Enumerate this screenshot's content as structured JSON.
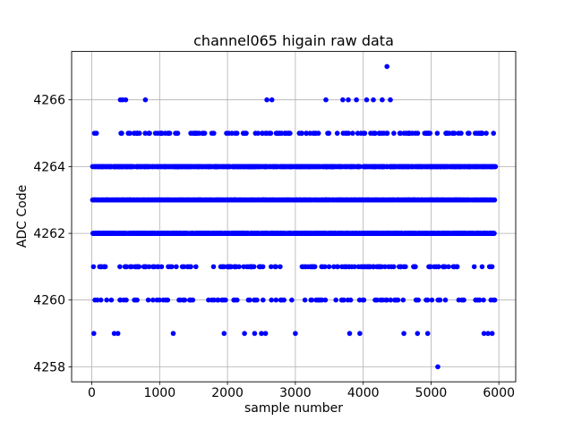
{
  "chart_data": {
    "type": "scatter",
    "title": "channel065 higain raw data",
    "xlabel": "sample number",
    "ylabel": "ADC Code",
    "marker": {
      "color": "#0000ff",
      "radius": 2.8
    },
    "grid": true,
    "legend": "none",
    "x_range": [
      10,
      5950
    ],
    "xlim": [
      -297.5,
      6247.5
    ],
    "ylim": [
      4257.55,
      4267.45
    ],
    "xticks": [
      0,
      1000,
      2000,
      3000,
      4000,
      5000,
      6000
    ],
    "yticks": [
      4258,
      4260,
      4262,
      4264,
      4266
    ],
    "levels": [
      {
        "adc": 4258,
        "points": [
          5100
        ]
      },
      {
        "adc": 4259,
        "points": [
          30,
          330,
          385,
          1200,
          1950,
          2250,
          2400,
          2500,
          2560,
          3000,
          3800,
          3950,
          4600,
          4800,
          4950,
          5780,
          5840,
          5900
        ]
      },
      {
        "adc": 4260,
        "count": 115,
        "seed": 3
      },
      {
        "adc": 4261,
        "count": 165,
        "seed": 4
      },
      {
        "adc": 4262,
        "count": 1250,
        "seed": 5
      },
      {
        "adc": 4263,
        "count": 1350,
        "seed": 6
      },
      {
        "adc": 4264,
        "count": 1000,
        "seed": 7
      },
      {
        "adc": 4265,
        "count": 145,
        "seed": 8
      },
      {
        "adc": 4266,
        "points": [
          420,
          455,
          500,
          790,
          2580,
          2655,
          3450,
          3700,
          3780,
          3900,
          4050,
          4150,
          4280,
          4400
        ]
      },
      {
        "adc": 4267,
        "points": [
          4350
        ]
      }
    ]
  }
}
